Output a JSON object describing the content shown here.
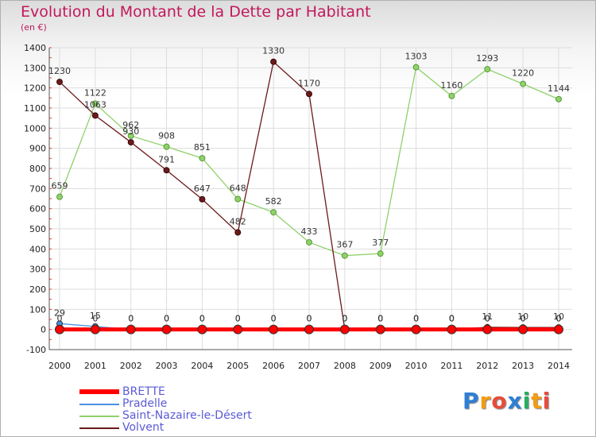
{
  "header": {
    "title": "Evolution du Montant de la Dette par Habitant",
    "subtitle": "(en €)"
  },
  "logo": {
    "text": "Proxiti",
    "colors": [
      "#2e7fd6",
      "#f39c12",
      "#e74c3c",
      "#2e7fd6",
      "#27ae60",
      "#f39c12",
      "#e74c3c"
    ]
  },
  "chart_data": {
    "type": "line",
    "title": "Evolution du Montant de la Dette par Habitant",
    "ylabel": "(en €)",
    "x": [
      2000,
      2001,
      2002,
      2003,
      2004,
      2005,
      2006,
      2007,
      2008,
      2009,
      2010,
      2011,
      2012,
      2013,
      2014
    ],
    "yticks": [
      -100,
      0,
      100,
      200,
      300,
      400,
      500,
      600,
      700,
      800,
      900,
      1000,
      1100,
      1200,
      1300,
      1400
    ],
    "ylim": [
      -100,
      1400
    ],
    "grid": true,
    "legend_position": "bottom-left",
    "series": [
      {
        "name": "BRETTE",
        "color": "#ff0000",
        "values": [
          0,
          0,
          0,
          0,
          0,
          0,
          0,
          0,
          0,
          0,
          0,
          0,
          0,
          0,
          0
        ],
        "labels": [
          "0",
          "0",
          "0",
          "0",
          "0",
          "0",
          "0",
          "0",
          "0",
          "0",
          "0",
          "0",
          "0",
          "0",
          "0"
        ]
      },
      {
        "name": "Pradelle",
        "color": "#4a90e2",
        "values": [
          29,
          15,
          0,
          0,
          0,
          0,
          0,
          0,
          0,
          0,
          0,
          0,
          0,
          0,
          0
        ],
        "labels": [
          "29",
          "15",
          "0",
          "0",
          "0",
          "0",
          "0",
          "0",
          "0",
          "0",
          "0",
          "0",
          "0",
          "0",
          "0"
        ]
      },
      {
        "name": "Saint-Nazaire-le-Désert",
        "color": "#8fd16a",
        "values": [
          659,
          1122,
          962,
          908,
          851,
          648,
          582,
          433,
          367,
          377,
          1303,
          1160,
          1293,
          1220,
          1144
        ],
        "labels": [
          "659",
          "1122",
          "962",
          "908",
          "851",
          "648",
          "582",
          "433",
          "367",
          "377",
          "1303",
          "1160",
          "1293",
          "1220",
          "1144"
        ]
      },
      {
        "name": "Volvent",
        "color": "#6b1a1a",
        "values": [
          1230,
          1063,
          930,
          791,
          647,
          482,
          1330,
          1170,
          0,
          0,
          0,
          0,
          11,
          10,
          10
        ],
        "labels": [
          "1230",
          "1063",
          "930",
          "791",
          "647",
          "482",
          "1330",
          "1170",
          "0",
          "0",
          "0",
          "0",
          "11",
          "10",
          "10"
        ]
      }
    ]
  }
}
